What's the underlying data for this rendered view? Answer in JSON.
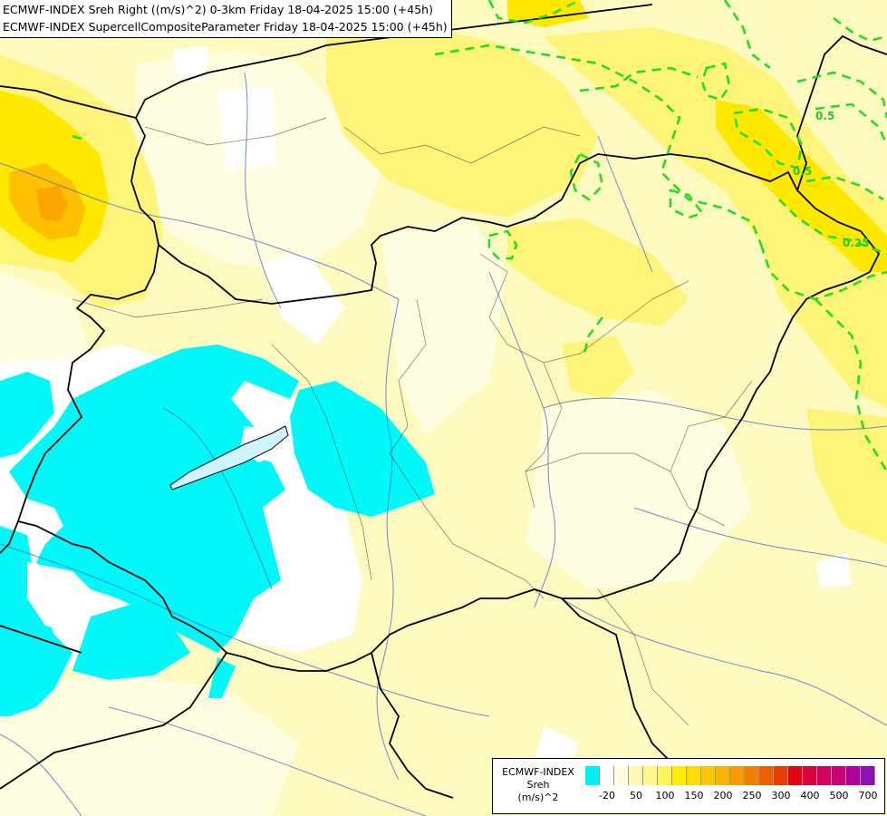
{
  "title": {
    "line1": "ECMWF-INDEX Sreh Right ((m/s)^2) 0-3km Friday 18-04-2025 15:00 (+45h)",
    "line2": "ECMWF-INDEX SupercellCompositeParameter Friday 18-04-2025 15:00 (+45h)"
  },
  "contour_labels": [
    "0.5",
    "0.5",
    "0.25"
  ],
  "legend": {
    "source": "ECMWF-INDEX",
    "variable": "Sreh",
    "unit": "(m/s)^2",
    "colors": [
      "#00f0f8",
      "#ffffff",
      "#fffde0",
      "#fdf9b5",
      "#fff68c",
      "#fff35a",
      "#ffee00",
      "#fedc00",
      "#fdc600",
      "#fcb300",
      "#f99a00",
      "#f57d00",
      "#f06000",
      "#ea3c00",
      "#e60012",
      "#e0003a",
      "#d8005e",
      "#c8007c",
      "#b0009a",
      "#9010b8",
      "#7018c8",
      "#4818c0",
      "#2a10a8",
      "#140a90",
      "#0a0a70"
    ],
    "ticks": [
      {
        "label": "-20",
        "index": 1
      },
      {
        "label": "50",
        "index": 3
      },
      {
        "label": "100",
        "index": 5
      },
      {
        "label": "150",
        "index": 7
      },
      {
        "label": "200",
        "index": 9
      },
      {
        "label": "250",
        "index": 11
      },
      {
        "label": "300",
        "index": 13
      },
      {
        "label": "400",
        "index": 15
      },
      {
        "label": "500",
        "index": 17
      },
      {
        "label": "700",
        "index": 19
      }
    ]
  }
}
